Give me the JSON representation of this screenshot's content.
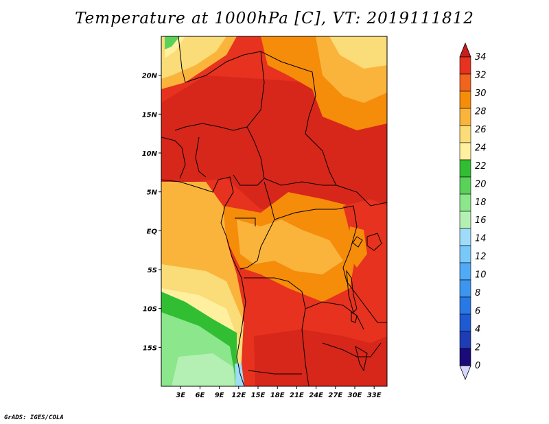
{
  "title": "Temperature at 1000hPa [C], VT: 2019111812",
  "footer": "GrADS: IGES/COLA",
  "map": {
    "lon_range": [
      0,
      35
    ],
    "lat_range": [
      -20,
      25
    ],
    "lon_ticks": [
      "3E",
      "6E",
      "9E",
      "12E",
      "15E",
      "18E",
      "21E",
      "24E",
      "27E",
      "30E",
      "33E"
    ],
    "lat_ticks": [
      "20N",
      "15N",
      "10N",
      "5N",
      "EQ",
      "5S",
      "10S",
      "15S"
    ]
  },
  "colorbar": {
    "labels": [
      "0",
      "2",
      "4",
      "6",
      "8",
      "10",
      "12",
      "14",
      "16",
      "18",
      "20",
      "22",
      "24",
      "26",
      "28",
      "30",
      "32",
      "34"
    ],
    "colors": [
      "#1a0a7a",
      "#1e3cb4",
      "#1e5ad2",
      "#2878e6",
      "#3c96f0",
      "#50aaf5",
      "#78c8fa",
      "#a0dcfa",
      "#b4f0b4",
      "#8ce68c",
      "#5ad25a",
      "#32be32",
      "#fff0a0",
      "#fadc78",
      "#fab43c",
      "#f58c0a",
      "#f0641e",
      "#e6321e",
      "#c81e1e"
    ],
    "low_color": "#d8d8ff"
  }
}
